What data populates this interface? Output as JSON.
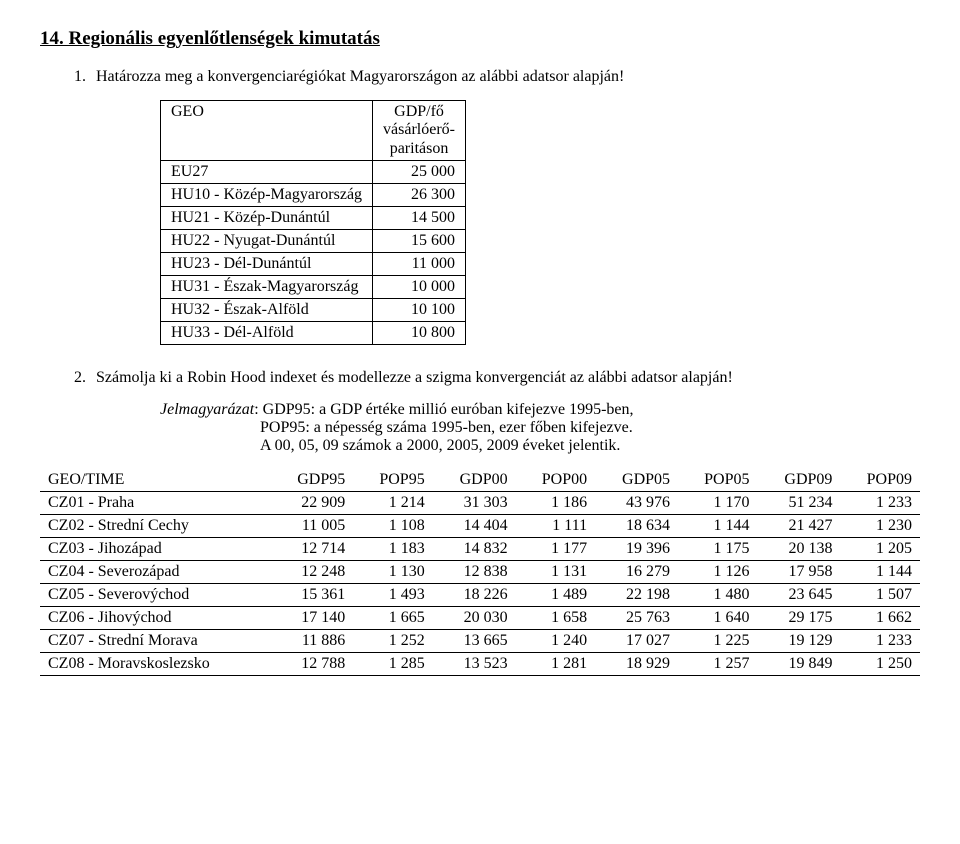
{
  "title": "14. Regionális egyenlőtlenségek kimutatás",
  "q1": {
    "num": "1.",
    "text": "Határozza meg a konvergenciarégiókat Magyarországon az alábbi adatsor alapján!"
  },
  "table1": {
    "header": {
      "col1": "GEO",
      "col2": "GDP/fő\nvásárlóerő-\nparitáson"
    },
    "rows": [
      {
        "region": "EU27",
        "value": "25 000"
      },
      {
        "region": "HU10 - Közép-Magyarország",
        "value": "26 300"
      },
      {
        "region": "HU21 - Közép-Dunántúl",
        "value": "14 500"
      },
      {
        "region": "HU22 - Nyugat-Dunántúl",
        "value": "15 600"
      },
      {
        "region": "HU23 - Dél-Dunántúl",
        "value": "11 000"
      },
      {
        "region": "HU31 - Észak-Magyarország",
        "value": "10 000"
      },
      {
        "region": "HU32 - Észak-Alföld",
        "value": "10 100"
      },
      {
        "region": "HU33 - Dél-Alföld",
        "value": "10 800"
      }
    ]
  },
  "q2": {
    "num": "2.",
    "text": "Számolja ki a Robin Hood indexet és modellezze a szigma konvergenciát az alábbi adatsor alapján!"
  },
  "legend": {
    "label": "Jelmagyarázat",
    "line1": ": GDP95: a GDP értéke millió euróban kifejezve 1995-ben,",
    "line2": "POP95: a népesség száma 1995-ben, ezer főben kifejezve.",
    "line3": "A 00, 05, 09 számok a 2000, 2005, 2009 éveket jelentik."
  },
  "table2": {
    "columns": [
      "GEO/TIME",
      "GDP95",
      "POP95",
      "GDP00",
      "POP00",
      "GDP05",
      "POP05",
      "GDP09",
      "POP09"
    ],
    "rows": [
      [
        "CZ01 - Praha",
        "22 909",
        "1 214",
        "31 303",
        "1 186",
        "43 976",
        "1 170",
        "51 234",
        "1 233"
      ],
      [
        "CZ02 - Strední Cechy",
        "11 005",
        "1 108",
        "14 404",
        "1 111",
        "18 634",
        "1 144",
        "21 427",
        "1 230"
      ],
      [
        "CZ03 - Jihozápad",
        "12 714",
        "1 183",
        "14 832",
        "1 177",
        "19 396",
        "1 175",
        "20 138",
        "1 205"
      ],
      [
        "CZ04 - Severozápad",
        "12 248",
        "1 130",
        "12 838",
        "1 131",
        "16 279",
        "1 126",
        "17 958",
        "1 144"
      ],
      [
        "CZ05 - Severovýchod",
        "15 361",
        "1 493",
        "18 226",
        "1 489",
        "22 198",
        "1 480",
        "23 645",
        "1 507"
      ],
      [
        "CZ06 - Jihovýchod",
        "17 140",
        "1 665",
        "20 030",
        "1 658",
        "25 763",
        "1 640",
        "29 175",
        "1 662"
      ],
      [
        "CZ07 - Strední Morava",
        "11 886",
        "1 252",
        "13 665",
        "1 240",
        "17 027",
        "1 225",
        "19 129",
        "1 233"
      ],
      [
        "CZ08 - Moravskoslezsko",
        "12 788",
        "1 285",
        "13 523",
        "1 281",
        "18 929",
        "1 257",
        "19 849",
        "1 250"
      ]
    ]
  }
}
